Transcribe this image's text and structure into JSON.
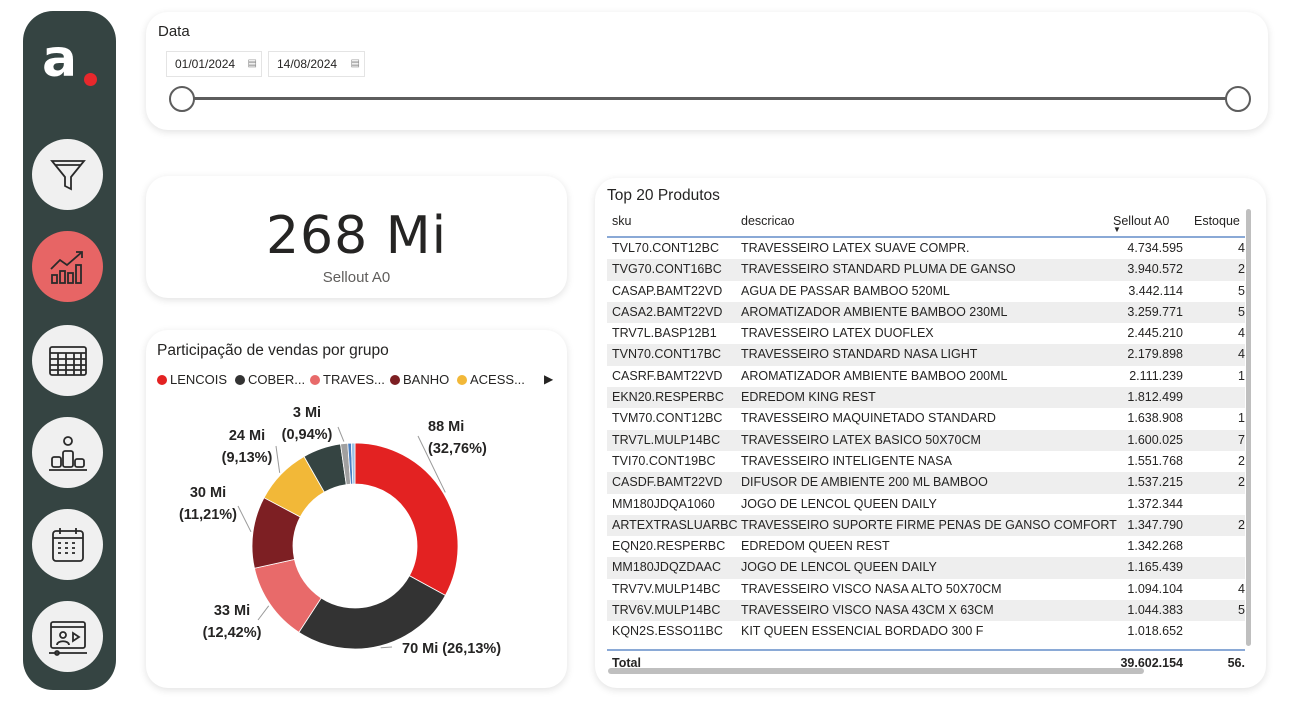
{
  "sidebar": {
    "logo_letter": "a",
    "icons": [
      "filter-icon",
      "trend-chart-icon",
      "table-icon",
      "ranking-podium-icon",
      "calendar-icon",
      "presentation-icon"
    ]
  },
  "date_filter": {
    "title": "Data",
    "start": "01/01/2024",
    "end": "14/08/2024",
    "range_fraction": [
      0,
      1
    ]
  },
  "kpi": {
    "value": "268 Mi",
    "label": "Sellout A0"
  },
  "donut": {
    "title": "Participação de vendas por grupo",
    "legend": [
      {
        "label": "LENCOIS",
        "color": "#e32222"
      },
      {
        "label": "COBER...",
        "color": "#333333"
      },
      {
        "label": "TRAVES...",
        "color": "#e86a6a"
      },
      {
        "label": "BANHO",
        "color": "#7d1f23"
      },
      {
        "label": "ACESS...",
        "color": "#f2b838"
      }
    ],
    "legend_more": "▶"
  },
  "chart_data": {
    "type": "pie",
    "title": "Participação de vendas por grupo",
    "series": [
      {
        "name": "LENCOIS",
        "value": 88,
        "percent": 32.76,
        "label": "88 Mi",
        "pct_label": "(32,76%)",
        "color": "#e32222"
      },
      {
        "name": "COBER...",
        "value": 70,
        "percent": 26.13,
        "label": "70 Mi",
        "pct_label": "(26,13%)",
        "color": "#333333"
      },
      {
        "name": "TRAVES...",
        "value": 33,
        "percent": 12.42,
        "label": "33 Mi",
        "pct_label": "(12,42%)",
        "color": "#e86a6a"
      },
      {
        "name": "BANHO",
        "value": 30,
        "percent": 11.21,
        "label": "30 Mi",
        "pct_label": "(11,21%)",
        "color": "#7d1f23"
      },
      {
        "name": "ACESS...",
        "value": 24,
        "percent": 9.13,
        "label": "24 Mi",
        "pct_label": "(9,13%)",
        "color": "#f2b838"
      },
      {
        "name": "",
        "value": 16,
        "percent": 6.0,
        "label": "",
        "pct_label": "",
        "color": "#354442"
      },
      {
        "name": "",
        "value": 3,
        "percent": 0.94,
        "label": "3 Mi",
        "pct_label": "(0,94%)",
        "color": "#a0a0a0"
      },
      {
        "name": "",
        "value": 1.5,
        "percent": 0.6,
        "label": "",
        "pct_label": "",
        "color": "#4a7fc1"
      },
      {
        "name": "",
        "value": 1.5,
        "percent": 0.6,
        "label": "",
        "pct_label": "",
        "color": "#9cc3e6"
      }
    ]
  },
  "table": {
    "title": "Top 20 Produtos",
    "columns": [
      "sku",
      "descricao",
      "Sellout A0",
      "Estoque"
    ],
    "rows": [
      [
        "TVL70.CONT12BC",
        "TRAVESSEIRO LATEX SUAVE COMPR.",
        "4.734.595",
        "4"
      ],
      [
        "TVG70.CONT16BC",
        "TRAVESSEIRO STANDARD PLUMA DE GANSO",
        "3.940.572",
        "2"
      ],
      [
        "CASAP.BAMT22VD",
        "AGUA DE PASSAR BAMBOO 520ML",
        "3.442.114",
        "5"
      ],
      [
        "CASA2.BAMT22VD",
        "AROMATIZADOR AMBIENTE BAMBOO 230ML",
        "3.259.771",
        "5"
      ],
      [
        "TRV7L.BASP12B1",
        "TRAVESSEIRO LATEX DUOFLEX",
        "2.445.210",
        "4"
      ],
      [
        "TVN70.CONT17BC",
        "TRAVESSEIRO STANDARD NASA LIGHT",
        "2.179.898",
        "4"
      ],
      [
        "CASRF.BAMT22VD",
        "AROMATIZADOR AMBIENTE BAMBOO 200ML",
        "2.111.239",
        "1"
      ],
      [
        "EKN20.RESPERBC",
        "EDREDOM KING REST",
        "1.812.499",
        ""
      ],
      [
        "TVM70.CONT12BC",
        "TRAVESSEIRO MAQUINETADO STANDARD",
        "1.638.908",
        "1"
      ],
      [
        "TRV7L.MULP14BC",
        "TRAVESSEIRO LATEX BASICO 50X70CM",
        "1.600.025",
        "7"
      ],
      [
        "TVI70.CONT19BC",
        "TRAVESSEIRO INTELIGENTE NASA",
        "1.551.768",
        "2"
      ],
      [
        "CASDF.BAMT22VD",
        "DIFUSOR DE AMBIENTE 200 ML BAMBOO",
        "1.537.215",
        "2"
      ],
      [
        "MM180JDQA1060",
        "JOGO DE LENCOL QUEEN DAILY",
        "1.372.344",
        ""
      ],
      [
        "ARTEXTRASLUARBC",
        "TRAVESSEIRO SUPORTE FIRME PENAS DE GANSO COMFORT",
        "1.347.790",
        "2"
      ],
      [
        "EQN20.RESPERBC",
        "EDREDOM QUEEN REST",
        "1.342.268",
        ""
      ],
      [
        "MM180JDQZDAAC",
        "JOGO DE LENCOL QUEEN DAILY",
        "1.165.439",
        ""
      ],
      [
        "TRV7V.MULP14BC",
        "TRAVESSEIRO VISCO NASA ALTO 50X70CM",
        "1.094.104",
        "4"
      ],
      [
        "TRV6V.MULP14BC",
        "TRAVESSEIRO VISCO NASA 43CM X 63CM",
        "1.044.383",
        "5"
      ],
      [
        "KQN2S.ESSO11BC",
        "KIT QUEEN ESSENCIAL BORDADO 300 F",
        "1.018.652",
        ""
      ]
    ],
    "total": {
      "label": "Total",
      "sellout": "39.602.154",
      "estoque": "56."
    }
  }
}
